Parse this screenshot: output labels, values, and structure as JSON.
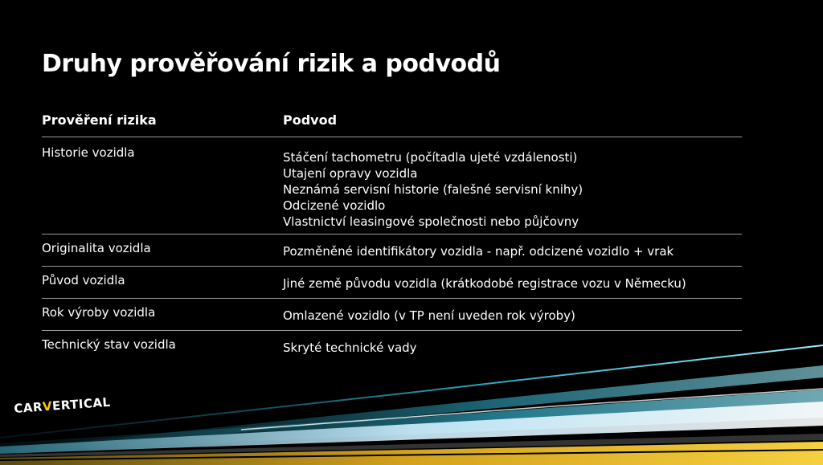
{
  "title": "Druhy prověřování rizik a podvodů",
  "table": {
    "headers": [
      "Prověření rizika",
      "Podvod"
    ],
    "rows": [
      {
        "risk": "Historie vozidla",
        "fraud": [
          "Stáčení tachometru (počítadla ujeté vzdálenosti)",
          "Utajení opravy vozidla",
          "Neznámá servisní historie (falešné servisní knihy)",
          "Odcizené vozidlo",
          "Vlastnictví leasingové společnosti nebo půjčovny"
        ]
      },
      {
        "risk": "Originalita vozidla",
        "fraud": [
          "Pozměněné identifikátory vozidla - např. odcizené vozidlo + vrak"
        ]
      },
      {
        "risk": "Původ vozidla",
        "fraud": [
          "Jiné země původu vozidla (krátkodobé registrace vozu v Německu)"
        ]
      },
      {
        "risk": "Rok výroby vozidla",
        "fraud": [
          "Omlazené vozidlo (v TP není uveden rok výroby)"
        ]
      },
      {
        "risk": "Technický stav vozidla",
        "fraud": [
          "Skryté technické vady"
        ]
      }
    ]
  },
  "logo": {
    "part1": "CAR",
    "part2": "V",
    "part3": "ERTICAL"
  },
  "colors": {
    "background": "#000000",
    "accent_yellow": "#f5c518",
    "accent_cyan": "#3ec6e0"
  }
}
